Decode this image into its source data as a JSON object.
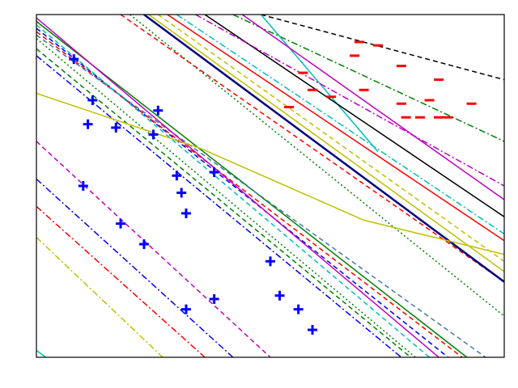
{
  "chart_data": {
    "type": "scatter",
    "title": "",
    "xlabel": "",
    "ylabel": "",
    "xlim": [
      0,
      1
    ],
    "ylim": [
      0,
      1
    ],
    "grid": false,
    "legend": "none",
    "axis_ticks": "hidden",
    "series": [
      {
        "class": "positive",
        "marker": "plus",
        "color": "#0000ff",
        "points": [
          [
            0.08,
            0.87
          ],
          [
            0.12,
            0.75
          ],
          [
            0.11,
            0.68
          ],
          [
            0.17,
            0.67
          ],
          [
            0.26,
            0.72
          ],
          [
            0.25,
            0.65
          ],
          [
            0.1,
            0.5
          ],
          [
            0.3,
            0.53
          ],
          [
            0.31,
            0.48
          ],
          [
            0.38,
            0.54
          ],
          [
            0.32,
            0.42
          ],
          [
            0.18,
            0.39
          ],
          [
            0.23,
            0.33
          ],
          [
            0.5,
            0.28
          ],
          [
            0.52,
            0.18
          ],
          [
            0.56,
            0.14
          ],
          [
            0.59,
            0.08
          ],
          [
            0.32,
            0.14
          ],
          [
            0.38,
            0.17
          ]
        ]
      },
      {
        "class": "negative",
        "marker": "minus",
        "color": "#ff0000",
        "points": [
          [
            0.69,
            0.92
          ],
          [
            0.73,
            0.91
          ],
          [
            0.68,
            0.88
          ],
          [
            0.78,
            0.85
          ],
          [
            0.57,
            0.83
          ],
          [
            0.59,
            0.78
          ],
          [
            0.63,
            0.76
          ],
          [
            0.7,
            0.78
          ],
          [
            0.78,
            0.74
          ],
          [
            0.86,
            0.81
          ],
          [
            0.84,
            0.75
          ],
          [
            0.93,
            0.74
          ],
          [
            0.79,
            0.7
          ],
          [
            0.82,
            0.7
          ],
          [
            0.86,
            0.7
          ],
          [
            0.88,
            0.7
          ],
          [
            0.54,
            0.73
          ]
        ]
      }
    ],
    "decision_lines": [
      {
        "color": "#000000",
        "dash": "dashed",
        "p": [
          [
            0.48,
            1.0
          ],
          [
            1.0,
            0.81
          ]
        ]
      },
      {
        "color": "#008000",
        "dash": "dashdot",
        "p": [
          [
            0.42,
            1.0
          ],
          [
            1.0,
            0.63
          ]
        ]
      },
      {
        "color": "#00bfbf",
        "dash": "solid",
        "p": [
          [
            0.48,
            1.0
          ],
          [
            0.73,
            0.6
          ]
        ]
      },
      {
        "color": "#bf00bf",
        "dash": "solid",
        "p": [
          [
            0.44,
            1.0
          ],
          [
            1.0,
            0.46
          ]
        ]
      },
      {
        "color": "#000000",
        "dash": "solid",
        "p": [
          [
            0.36,
            1.0
          ],
          [
            1.0,
            0.41
          ]
        ]
      },
      {
        "color": "#bf00bf",
        "dash": "dashdot",
        "p": [
          [
            0.34,
            1.0
          ],
          [
            1.0,
            0.5
          ]
        ]
      },
      {
        "color": "#008000",
        "dash": "dotted",
        "p": [
          [
            0.2,
            1.0
          ],
          [
            1.0,
            0.12
          ]
        ]
      },
      {
        "color": "#ff0000",
        "dash": "dashed",
        "p": [
          [
            0.18,
            1.0
          ],
          [
            1.0,
            0.22
          ]
        ]
      },
      {
        "color": "#bfbf00",
        "dash": "solid",
        "p": [
          [
            0.24,
            1.0
          ],
          [
            1.0,
            0.25
          ]
        ]
      },
      {
        "color": "#000080",
        "dash": "solid",
        "p": [
          [
            0.23,
            1.0
          ],
          [
            1.0,
            0.22
          ]
        ]
      },
      {
        "color": "#bfbf00",
        "dash": "dashed",
        "p": [
          [
            0.26,
            1.0
          ],
          [
            1.0,
            0.28
          ]
        ]
      },
      {
        "color": "#ff0000",
        "dash": "solid",
        "p": [
          [
            0.28,
            1.0
          ],
          [
            1.0,
            0.34
          ]
        ]
      },
      {
        "color": "#00bfbf",
        "dash": "dashdot",
        "p": [
          [
            0.3,
            1.0
          ],
          [
            1.0,
            0.36
          ]
        ]
      },
      {
        "color": "#008000",
        "dash": "solid",
        "p": [
          [
            0.0,
            0.98
          ],
          [
            0.92,
            0.0
          ]
        ]
      },
      {
        "color": "#0000ff",
        "dash": "dashed",
        "p": [
          [
            0.0,
            0.96
          ],
          [
            0.88,
            0.0
          ]
        ]
      },
      {
        "color": "#ff0000",
        "dash": "dashed",
        "p": [
          [
            0.0,
            0.95
          ],
          [
            0.91,
            0.0
          ]
        ]
      },
      {
        "color": "#4477aa",
        "dash": "dashed",
        "p": [
          [
            0.0,
            0.94
          ],
          [
            0.96,
            0.0
          ]
        ]
      },
      {
        "color": "#00bfbf",
        "dash": "dashed",
        "p": [
          [
            0.0,
            0.97
          ],
          [
            0.84,
            0.0
          ]
        ]
      },
      {
        "color": "#bf00bf",
        "dash": "solid",
        "p": [
          [
            0.0,
            0.99
          ],
          [
            0.86,
            0.0
          ]
        ]
      },
      {
        "color": "#008000",
        "dash": "dotted",
        "p": [
          [
            0.0,
            0.93
          ],
          [
            0.81,
            0.0
          ]
        ]
      },
      {
        "color": "#0000ff",
        "dash": "dashdot",
        "p": [
          [
            0.0,
            0.88
          ],
          [
            0.78,
            0.0
          ]
        ]
      },
      {
        "color": "#008000",
        "dash": "dashed",
        "p": [
          [
            0.0,
            0.9
          ],
          [
            0.8,
            0.0
          ]
        ]
      },
      {
        "color": "#bfbf00",
        "dash": "solid",
        "p": [
          [
            0.0,
            0.77
          ],
          [
            0.35,
            0.61
          ],
          [
            0.7,
            0.4
          ],
          [
            1.0,
            0.3
          ]
        ]
      },
      {
        "color": "#bf00bf",
        "dash": "dashed",
        "p": [
          [
            0.0,
            0.63
          ],
          [
            0.5,
            0.0
          ]
        ]
      },
      {
        "color": "#0000ff",
        "dash": "dashdot",
        "p": [
          [
            0.0,
            0.52
          ],
          [
            0.42,
            0.0
          ]
        ]
      },
      {
        "color": "#ff0000",
        "dash": "dashdot",
        "p": [
          [
            0.0,
            0.44
          ],
          [
            0.36,
            0.0
          ]
        ]
      },
      {
        "color": "#bfbf00",
        "dash": "dashdot",
        "p": [
          [
            0.0,
            0.35
          ],
          [
            0.27,
            0.0
          ]
        ]
      },
      {
        "color": "#00bfbf",
        "dash": "solid",
        "p": [
          [
            0.0,
            0.02
          ],
          [
            0.02,
            0.0
          ]
        ]
      }
    ]
  }
}
